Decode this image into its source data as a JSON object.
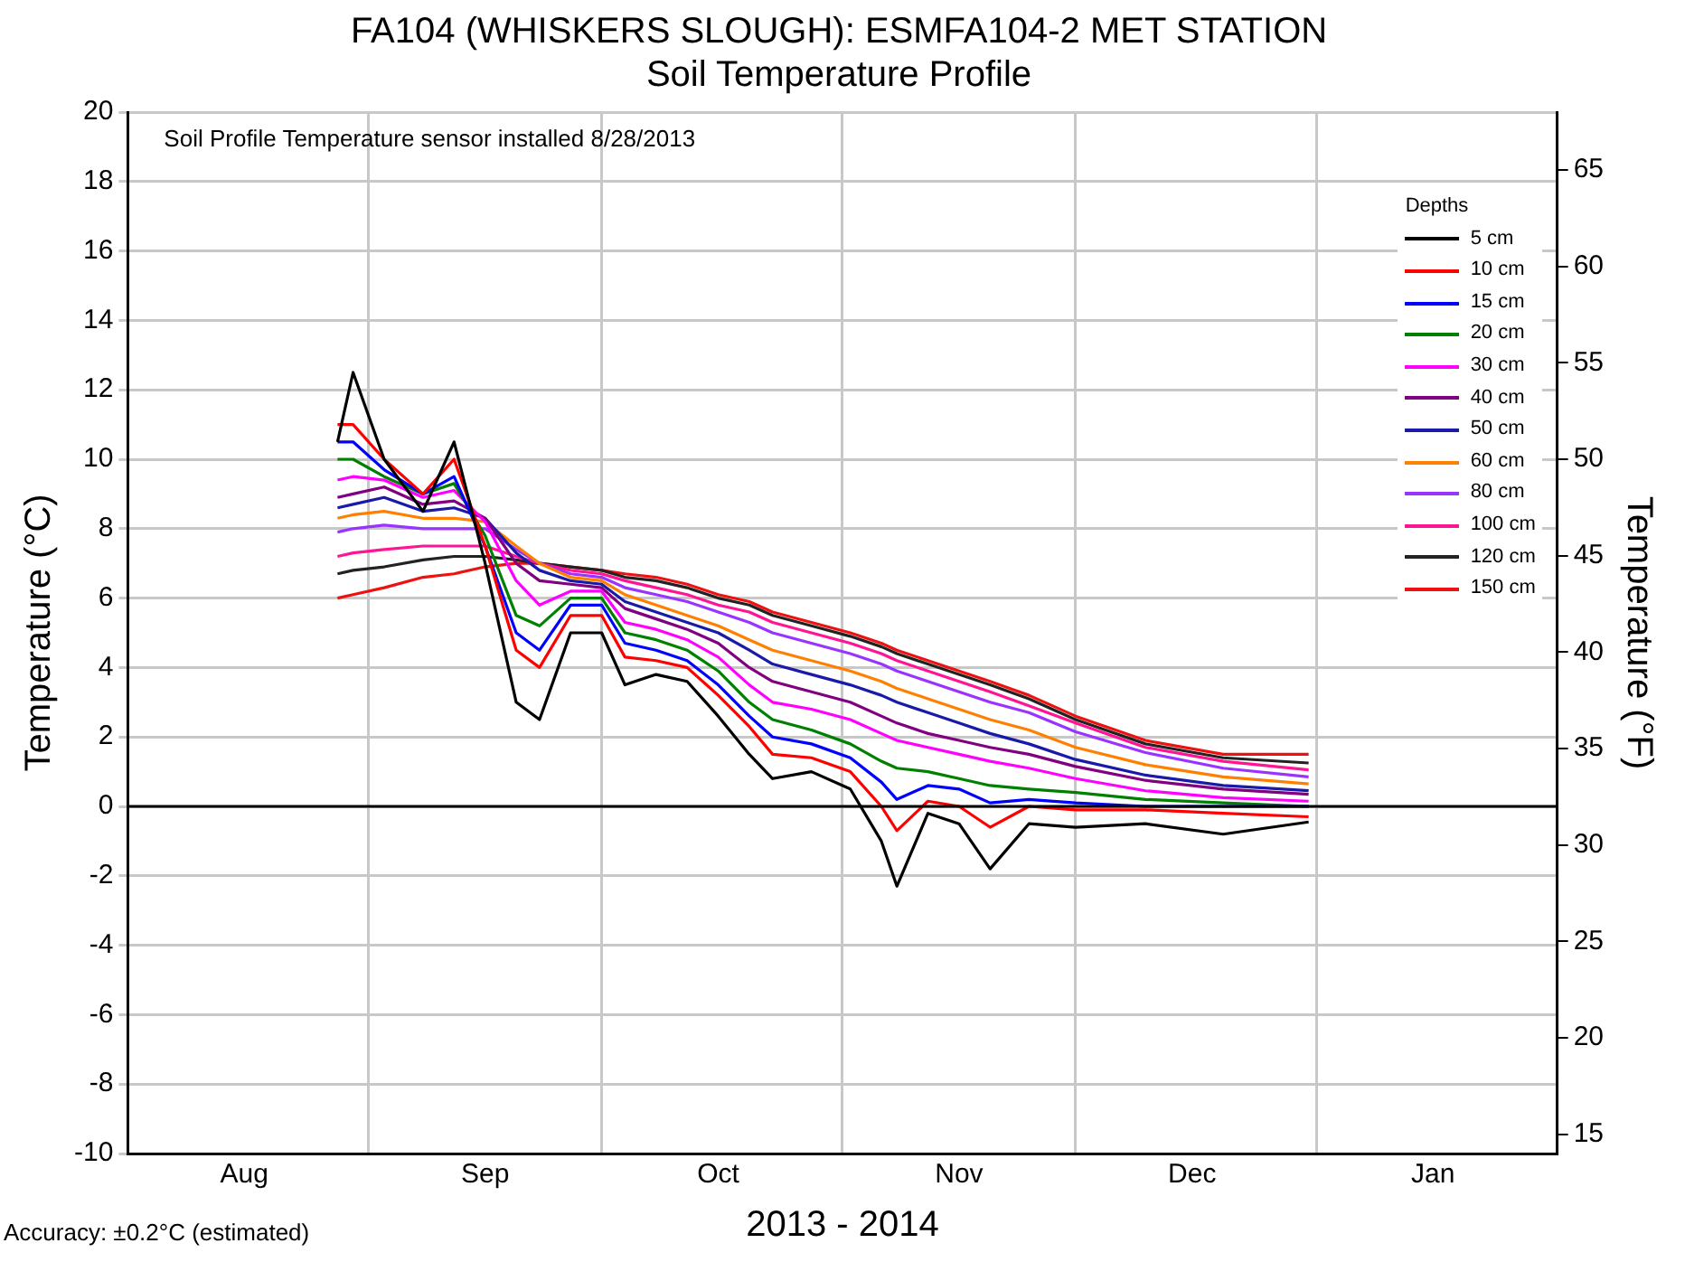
{
  "chart_data": {
    "type": "line",
    "title": "FA104 (WHISKERS SLOUGH): ESMFA104-2 MET STATION",
    "subtitle": "Soil Temperature Profile",
    "xlabel": "2013 - 2014",
    "ylabel": "Temperature (°C)",
    "y2label": "Temperature (°F)",
    "legend_title": "Depths",
    "annotations": [
      "Soil Profile Temperature sensor installed 8/28/2013",
      "Accuracy: ±0.2°C (estimated)"
    ],
    "x": [
      "2013-08-28",
      "2013-08-30",
      "2013-09-03",
      "2013-09-08",
      "2013-09-12",
      "2013-09-16",
      "2013-09-20",
      "2013-09-23",
      "2013-09-27",
      "2013-10-01",
      "2013-10-04",
      "2013-10-08",
      "2013-10-12",
      "2013-10-16",
      "2013-10-20",
      "2013-10-23",
      "2013-10-28",
      "2013-11-02",
      "2013-11-06",
      "2013-11-08",
      "2013-11-12",
      "2013-11-16",
      "2013-11-20",
      "2013-11-25",
      "2013-12-01",
      "2013-12-10",
      "2013-12-20",
      "2013-12-31"
    ],
    "series": [
      {
        "name": "5 cm",
        "color": "#000000",
        "values": [
          10.5,
          12.5,
          10,
          8.5,
          10.5,
          7,
          3,
          2.5,
          5,
          5,
          3.5,
          3.8,
          3.6,
          2.6,
          1.5,
          0.8,
          1.0,
          0.5,
          -1.0,
          -2.3,
          -0.2,
          -0.5,
          -1.8,
          -0.5,
          -0.6,
          -0.5,
          -0.8,
          -0.45
        ]
      },
      {
        "name": "10 cm",
        "color": "#ff0000",
        "values": [
          11,
          11,
          10,
          9,
          10,
          7.5,
          4.5,
          4,
          5.5,
          5.5,
          4.3,
          4.2,
          4.0,
          3.2,
          2.3,
          1.5,
          1.4,
          1.0,
          0,
          -0.7,
          0.15,
          0,
          -0.6,
          0,
          -0.1,
          -0.1,
          -0.2,
          -0.3
        ]
      },
      {
        "name": "15 cm",
        "color": "#0000ff",
        "values": [
          10.5,
          10.5,
          9.7,
          9.0,
          9.5,
          7.5,
          5.0,
          4.5,
          5.8,
          5.8,
          4.7,
          4.5,
          4.2,
          3.5,
          2.6,
          2.0,
          1.8,
          1.4,
          0.7,
          0.2,
          0.6,
          0.5,
          0.1,
          0.2,
          0.1,
          0,
          0,
          0
        ]
      },
      {
        "name": "20 cm",
        "color": "#008000",
        "values": [
          10,
          10,
          9.5,
          9.0,
          9.3,
          7.8,
          5.5,
          5.2,
          6.0,
          6.0,
          5.0,
          4.8,
          4.5,
          3.9,
          3.0,
          2.5,
          2.2,
          1.8,
          1.3,
          1.1,
          1.0,
          0.8,
          0.6,
          0.5,
          0.4,
          0.2,
          0.1,
          0
        ]
      },
      {
        "name": "30 cm",
        "color": "#ff00ff",
        "values": [
          9.4,
          9.5,
          9.4,
          8.9,
          9.1,
          8.2,
          6.5,
          5.8,
          6.2,
          6.2,
          5.3,
          5.1,
          4.8,
          4.3,
          3.5,
          3.0,
          2.8,
          2.5,
          2.1,
          1.9,
          1.7,
          1.5,
          1.3,
          1.1,
          0.8,
          0.45,
          0.25,
          0.15
        ]
      },
      {
        "name": "40 cm",
        "color": "#800080",
        "values": [
          8.9,
          9.0,
          9.2,
          8.7,
          8.8,
          8.3,
          7.0,
          6.5,
          6.4,
          6.3,
          5.7,
          5.4,
          5.1,
          4.7,
          4.0,
          3.6,
          3.3,
          3.0,
          2.6,
          2.4,
          2.1,
          1.9,
          1.7,
          1.5,
          1.15,
          0.75,
          0.5,
          0.35
        ]
      },
      {
        "name": "50 cm",
        "color": "#1a1aa8",
        "values": [
          8.6,
          8.7,
          8.9,
          8.5,
          8.6,
          8.3,
          7.3,
          6.8,
          6.5,
          6.4,
          5.9,
          5.6,
          5.3,
          5.0,
          4.5,
          4.1,
          3.8,
          3.5,
          3.2,
          3.0,
          2.7,
          2.4,
          2.1,
          1.8,
          1.35,
          0.9,
          0.6,
          0.45
        ]
      },
      {
        "name": "60 cm",
        "color": "#ff8000",
        "values": [
          8.3,
          8.4,
          8.5,
          8.3,
          8.3,
          8.2,
          7.5,
          7.0,
          6.6,
          6.5,
          6.1,
          5.8,
          5.5,
          5.2,
          4.8,
          4.5,
          4.2,
          3.9,
          3.6,
          3.4,
          3.1,
          2.8,
          2.5,
          2.2,
          1.7,
          1.2,
          0.85,
          0.65
        ]
      },
      {
        "name": "80 cm",
        "color": "#9933ff",
        "values": [
          7.9,
          8.0,
          8.1,
          8.0,
          8.0,
          8.0,
          7.4,
          7.0,
          6.7,
          6.6,
          6.3,
          6.1,
          5.9,
          5.6,
          5.3,
          5.0,
          4.7,
          4.4,
          4.1,
          3.9,
          3.6,
          3.3,
          3.0,
          2.7,
          2.15,
          1.55,
          1.1,
          0.85
        ]
      },
      {
        "name": "100 cm",
        "color": "#ff1493",
        "values": [
          7.2,
          7.3,
          7.4,
          7.5,
          7.5,
          7.5,
          7.2,
          7.0,
          6.8,
          6.7,
          6.5,
          6.3,
          6.1,
          5.8,
          5.6,
          5.3,
          5.0,
          4.7,
          4.4,
          4.2,
          3.9,
          3.6,
          3.3,
          2.9,
          2.4,
          1.7,
          1.3,
          1.05
        ]
      },
      {
        "name": "120 cm",
        "color": "#222222",
        "values": [
          6.7,
          6.8,
          6.9,
          7.1,
          7.2,
          7.2,
          7.1,
          7.0,
          6.9,
          6.8,
          6.6,
          6.5,
          6.3,
          6.0,
          5.8,
          5.5,
          5.2,
          4.9,
          4.6,
          4.4,
          4.1,
          3.8,
          3.5,
          3.1,
          2.5,
          1.8,
          1.4,
          1.25
        ]
      },
      {
        "name": "150 cm",
        "color": "#ee1111",
        "values": [
          6.0,
          6.1,
          6.3,
          6.6,
          6.7,
          6.9,
          7.0,
          7.0,
          6.9,
          6.8,
          6.7,
          6.6,
          6.4,
          6.1,
          5.9,
          5.6,
          5.3,
          5.0,
          4.7,
          4.5,
          4.2,
          3.9,
          3.6,
          3.2,
          2.6,
          1.9,
          1.5,
          1.5
        ]
      }
    ],
    "xlim": [
      "2013-08-01",
      "2014-02-01"
    ],
    "xticks": [
      {
        "value": "2013-08-01",
        "label": null
      },
      {
        "value": "2013-08-16",
        "label": "Aug"
      },
      {
        "value": "2013-09-01",
        "label": null
      },
      {
        "value": "2013-09-16",
        "label": "Sep"
      },
      {
        "value": "2013-10-01",
        "label": null
      },
      {
        "value": "2013-10-16",
        "label": "Oct"
      },
      {
        "value": "2013-11-01",
        "label": null
      },
      {
        "value": "2013-11-16",
        "label": "Nov"
      },
      {
        "value": "2013-12-01",
        "label": null
      },
      {
        "value": "2013-12-16",
        "label": "Dec"
      },
      {
        "value": "2014-01-01",
        "label": null
      },
      {
        "value": "2014-01-16",
        "label": "Jan"
      },
      {
        "value": "2014-02-01",
        "label": null
      }
    ],
    "ylim": [
      -10,
      20
    ],
    "yticks": [
      -10,
      -8,
      -6,
      -4,
      -2,
      0,
      2,
      4,
      6,
      8,
      10,
      12,
      14,
      16,
      18,
      20
    ],
    "y2lim": [
      14,
      68
    ],
    "y2ticks": [
      15,
      20,
      25,
      30,
      35,
      40,
      45,
      50,
      55,
      60,
      65
    ],
    "ref_lines": [
      {
        "axis": "y",
        "value": 0,
        "color": "#000000"
      }
    ],
    "grid": true,
    "legend": "top right",
    "marker": "none",
    "line_style": "solid"
  }
}
